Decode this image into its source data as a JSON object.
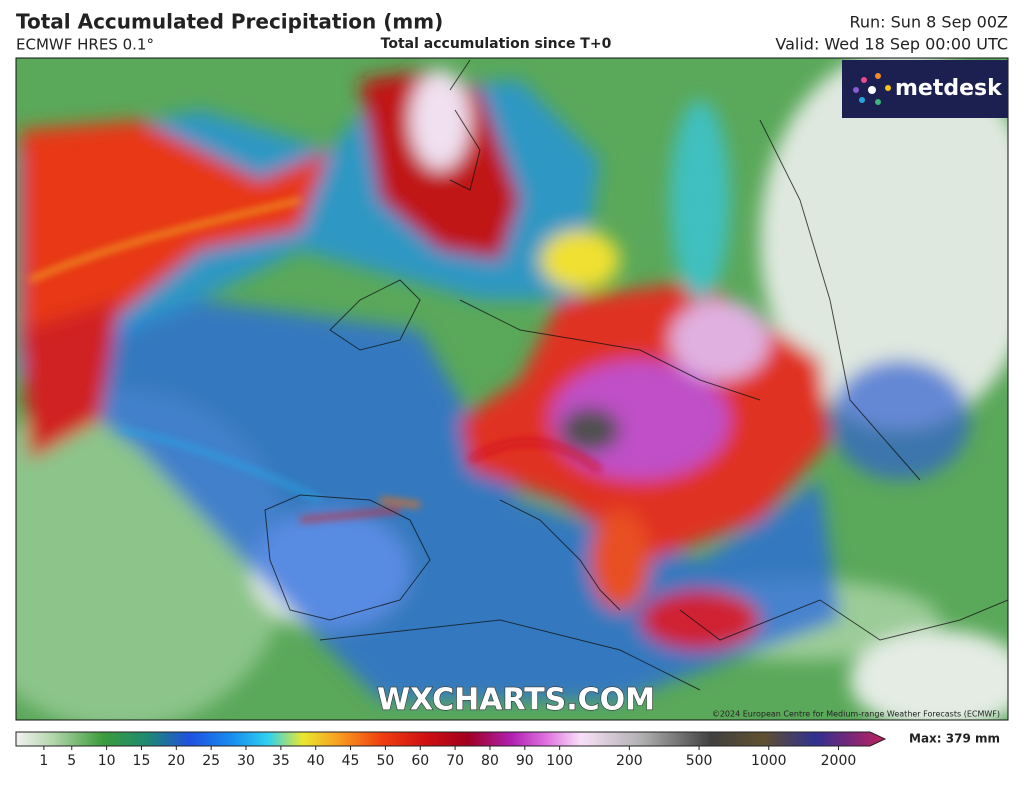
{
  "header": {
    "title": "Total Accumulated Precipitation (mm)",
    "model": "ECMWF HRES 0.1°",
    "description": "Total accumulation since T+0",
    "run": "Run: Sun 8 Sep 00Z",
    "valid": "Valid: Wed 18 Sep 00:00 UTC"
  },
  "logo": "metdesk",
  "map": {
    "watermark": "WXCHARTS.COM",
    "credit": "©2024 European Centre for Medium-range Weather Forecasts (ECMWF)"
  },
  "colorbar": {
    "ticks": [
      1,
      5,
      10,
      15,
      20,
      25,
      30,
      35,
      40,
      45,
      50,
      60,
      70,
      80,
      90,
      100,
      200,
      500,
      1000,
      2000
    ],
    "max_label": "Max: 379 mm"
  }
}
